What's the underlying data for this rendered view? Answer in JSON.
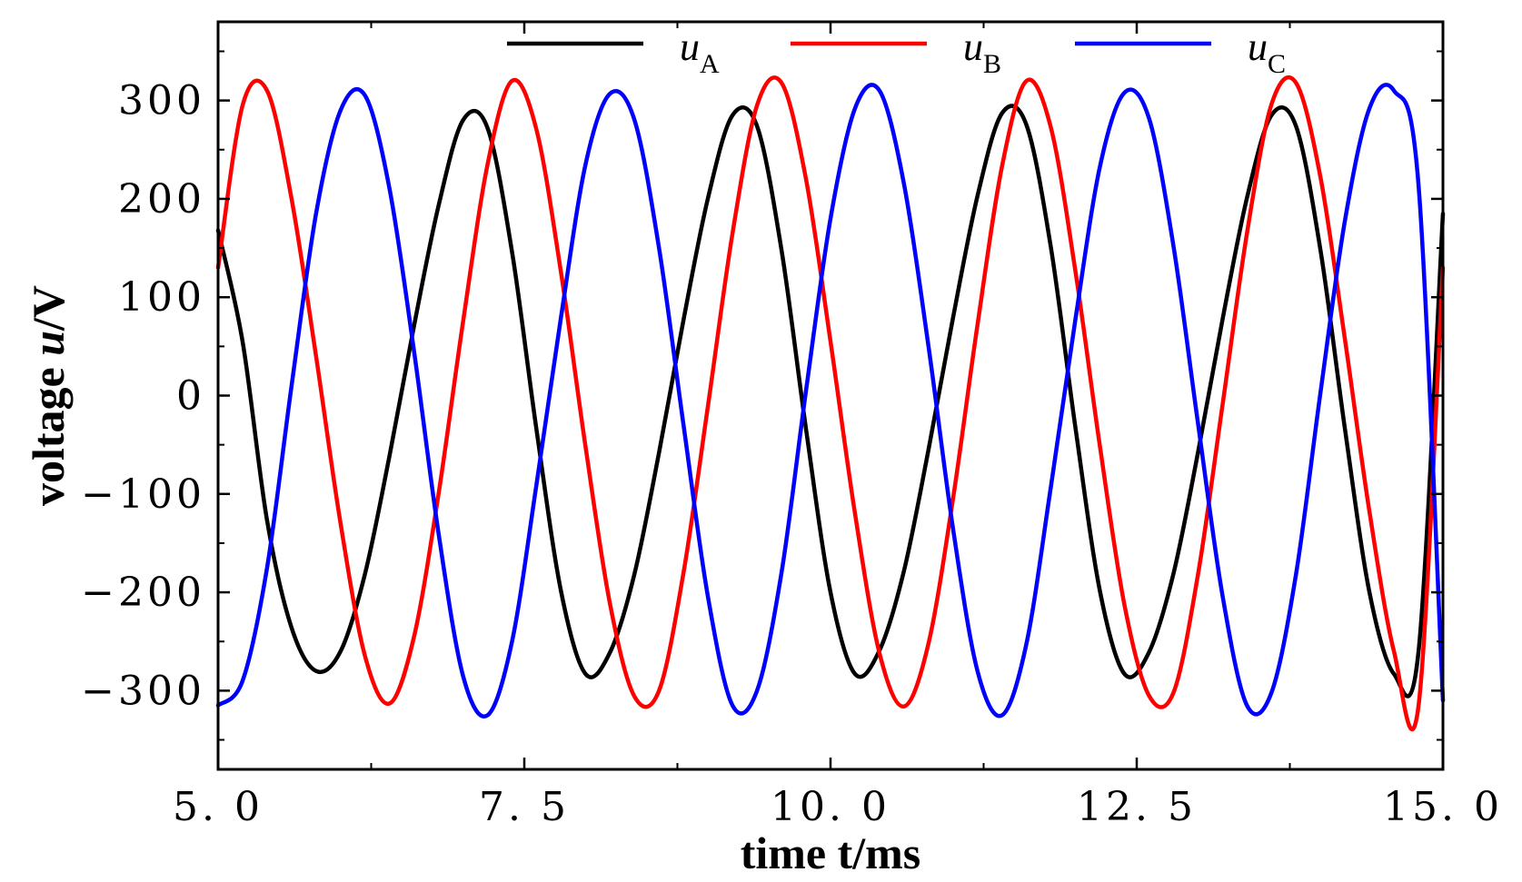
{
  "chart_data": {
    "type": "line",
    "xlabel": "time t/ms",
    "ylabel_main": "voltage ",
    "ylabel_var": "u",
    "ylabel_unit": "/V",
    "xlim": [
      5.0,
      15.0
    ],
    "ylim": [
      -380,
      380
    ],
    "x_ticks": [
      5.0,
      7.5,
      10.0,
      12.5,
      15.0
    ],
    "x_tick_labels": [
      "5. 0",
      "7. 5",
      "10. 0",
      "12. 5",
      "15. 0"
    ],
    "y_ticks": [
      300,
      200,
      100,
      0,
      -100,
      -200,
      -300
    ],
    "y_tick_labels": [
      "300",
      "200",
      "100",
      "0",
      "−100",
      "−200",
      "−300"
    ],
    "grid": false,
    "legend_position": "top",
    "series": [
      {
        "name_symbol": "u",
        "name_subscript": "A",
        "color": "#000000",
        "x": [
          5.0,
          5.2,
          5.4,
          5.6,
          5.8,
          6.0,
          6.2,
          6.4,
          6.6,
          6.8,
          7.0,
          7.2,
          7.4,
          7.6,
          7.8,
          8.0,
          8.2,
          8.4,
          8.6,
          8.8,
          9.0,
          9.2,
          9.4,
          9.6,
          9.8,
          10.0,
          10.2,
          10.4,
          10.6,
          10.8,
          11.0,
          11.2,
          11.4,
          11.6,
          11.8,
          12.0,
          12.2,
          12.4,
          12.6,
          12.8,
          13.0,
          13.2,
          13.4,
          13.6,
          13.8,
          14.0,
          14.2,
          14.4,
          14.6,
          14.8,
          15.0
        ],
        "values": [
          168,
          55,
          -127,
          -236,
          -280,
          -260,
          -181,
          -61,
          71,
          193,
          280,
          272,
          146,
          -35,
          -199,
          -283,
          -261,
          -181,
          -58,
          77,
          201,
          285,
          274,
          148,
          -34,
          -200,
          -283,
          -259,
          -178,
          -55,
          79,
          203,
          287,
          275,
          150,
          -33,
          -199,
          -283,
          -261,
          -181,
          -58,
          77,
          201,
          285,
          274,
          148,
          -34,
          -200,
          -283,
          -261,
          185
        ]
      },
      {
        "name_symbol": "u",
        "name_subscript": "B",
        "color": "#ff0000",
        "x": [
          5.0,
          5.2,
          5.4,
          5.6,
          5.8,
          6.0,
          6.2,
          6.4,
          6.6,
          6.8,
          7.0,
          7.2,
          7.4,
          7.6,
          7.8,
          8.0,
          8.2,
          8.4,
          8.6,
          8.8,
          9.0,
          9.2,
          9.4,
          9.6,
          9.8,
          10.0,
          10.2,
          10.4,
          10.6,
          10.8,
          11.0,
          11.2,
          11.4,
          11.6,
          11.8,
          12.0,
          12.2,
          12.4,
          12.6,
          12.8,
          13.0,
          13.2,
          13.4,
          13.6,
          13.8,
          14.0,
          14.2,
          14.4,
          14.6,
          14.8,
          15.0
        ],
        "values": [
          130,
          295,
          310,
          200,
          40,
          -130,
          -265,
          -313,
          -245,
          -100,
          75,
          235,
          320,
          270,
          125,
          -52,
          -212,
          -306,
          -300,
          -180,
          -10,
          165,
          295,
          318,
          220,
          55,
          -120,
          -262,
          -316,
          -252,
          -105,
          72,
          233,
          320,
          272,
          126,
          -52,
          -213,
          -305,
          -302,
          -182,
          -10,
          165,
          296,
          318,
          222,
          57,
          -118,
          -260,
          -316,
          130
        ]
      },
      {
        "name_symbol": "u",
        "name_subscript": "C",
        "color": "#0000ff",
        "x": [
          5.0,
          5.2,
          5.4,
          5.6,
          5.8,
          6.0,
          6.2,
          6.4,
          6.6,
          6.8,
          7.0,
          7.2,
          7.4,
          7.6,
          7.8,
          8.0,
          8.2,
          8.4,
          8.6,
          8.8,
          9.0,
          9.2,
          9.4,
          9.6,
          9.8,
          10.0,
          10.2,
          10.4,
          10.6,
          10.8,
          11.0,
          11.2,
          11.4,
          11.6,
          11.8,
          12.0,
          12.2,
          12.4,
          12.6,
          12.8,
          13.0,
          13.2,
          13.4,
          13.6,
          13.8,
          14.0,
          14.2,
          14.4,
          14.6,
          14.8,
          15.0
        ],
        "values": [
          -315,
          -290,
          -175,
          10,
          185,
          290,
          305,
          210,
          45,
          -140,
          -285,
          -325,
          -250,
          -90,
          80,
          235,
          307,
          280,
          150,
          -30,
          -205,
          -315,
          -300,
          -180,
          5,
          180,
          292,
          310,
          215,
          50,
          -135,
          -280,
          -325,
          -252,
          -92,
          78,
          233,
          308,
          282,
          152,
          -28,
          -203,
          -315,
          -302,
          -182,
          3,
          178,
          292,
          310,
          215,
          -310
        ]
      }
    ]
  }
}
